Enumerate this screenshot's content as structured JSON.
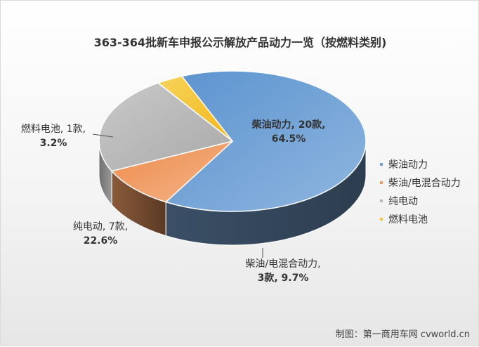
{
  "chart_data": {
    "type": "pie",
    "title": "363-364批新车申报公示解放产品动力一览（按燃料类别)",
    "slices": [
      {
        "label": "柴油动力",
        "value": 20,
        "percent": "64.5%",
        "data_label_line1": "柴油动力, 20款,",
        "data_label_line2": "64.5%",
        "color": "#6fa0d4"
      },
      {
        "label": "柴油/电混合动力",
        "value": 3,
        "percent": "9.7%",
        "data_label_line1": "柴油/电混合动力,",
        "data_label_line2": "3款, 9.7%",
        "color": "#ee9a63"
      },
      {
        "label": "纯电动",
        "value": 7,
        "percent": "22.6%",
        "data_label_line1": "纯电动, 7款,",
        "data_label_line2": "22.6%",
        "color": "#b9b9b9"
      },
      {
        "label": "燃料电池",
        "value": 1,
        "percent": "3.2%",
        "data_label_line1": "燃料电池, 1款,",
        "data_label_line2": "3.2%",
        "color": "#f3c431"
      }
    ],
    "legend_position": "right"
  },
  "footer": {
    "text": "制图：第一商用车网 cvworld.cn"
  }
}
